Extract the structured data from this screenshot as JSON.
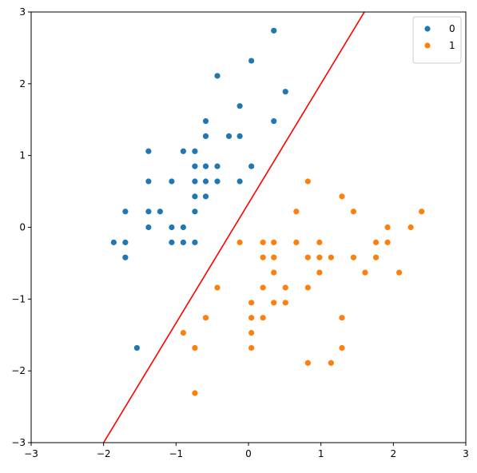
{
  "chart_data": {
    "type": "scatter",
    "title": "",
    "xlabel": "",
    "ylabel": "",
    "xlim": [
      -3,
      3
    ],
    "ylim": [
      -3,
      3
    ],
    "xticks": [
      -3,
      -2,
      -1,
      0,
      1,
      2,
      3
    ],
    "yticks": [
      -3,
      -2,
      -1,
      0,
      1,
      2,
      3
    ],
    "grid": false,
    "legend": "top-right",
    "series": [
      {
        "name": "0",
        "color": "#1f77b4",
        "points": [
          [
            0.35,
            2.74
          ],
          [
            0.04,
            2.32
          ],
          [
            -0.43,
            2.11
          ],
          [
            0.51,
            1.89
          ],
          [
            -0.12,
            1.69
          ],
          [
            -0.59,
            1.48
          ],
          [
            0.35,
            1.48
          ],
          [
            -0.59,
            1.27
          ],
          [
            -0.27,
            1.27
          ],
          [
            -0.12,
            1.27
          ],
          [
            -1.38,
            1.06
          ],
          [
            -0.9,
            1.06
          ],
          [
            -0.74,
            1.06
          ],
          [
            -0.74,
            0.85
          ],
          [
            -0.59,
            0.85
          ],
          [
            -0.43,
            0.85
          ],
          [
            0.04,
            0.85
          ],
          [
            -1.38,
            0.64
          ],
          [
            -1.06,
            0.64
          ],
          [
            -0.74,
            0.64
          ],
          [
            -0.59,
            0.64
          ],
          [
            -0.43,
            0.64
          ],
          [
            -0.12,
            0.64
          ],
          [
            -0.74,
            0.43
          ],
          [
            -0.59,
            0.43
          ],
          [
            -1.7,
            0.22
          ],
          [
            -1.38,
            0.22
          ],
          [
            -1.22,
            0.22
          ],
          [
            -0.74,
            0.22
          ],
          [
            -1.38,
            0.0
          ],
          [
            -1.06,
            0.0
          ],
          [
            -0.9,
            0.0
          ],
          [
            -1.86,
            -0.21
          ],
          [
            -1.7,
            -0.21
          ],
          [
            -1.06,
            -0.21
          ],
          [
            -0.9,
            -0.21
          ],
          [
            -0.74,
            -0.21
          ],
          [
            -1.7,
            -0.42
          ],
          [
            -1.54,
            -1.68
          ]
        ]
      },
      {
        "name": "1",
        "color": "#ff7f0e",
        "points": [
          [
            0.82,
            0.64
          ],
          [
            1.29,
            0.43
          ],
          [
            0.66,
            0.22
          ],
          [
            1.45,
            0.22
          ],
          [
            2.39,
            0.22
          ],
          [
            1.92,
            0.0
          ],
          [
            2.24,
            0.0
          ],
          [
            -0.12,
            -0.21
          ],
          [
            0.2,
            -0.21
          ],
          [
            0.35,
            -0.21
          ],
          [
            0.66,
            -0.21
          ],
          [
            0.98,
            -0.21
          ],
          [
            1.76,
            -0.21
          ],
          [
            1.92,
            -0.21
          ],
          [
            0.2,
            -0.42
          ],
          [
            0.35,
            -0.42
          ],
          [
            0.82,
            -0.42
          ],
          [
            0.98,
            -0.42
          ],
          [
            1.14,
            -0.42
          ],
          [
            1.45,
            -0.42
          ],
          [
            1.76,
            -0.42
          ],
          [
            0.35,
            -0.63
          ],
          [
            0.98,
            -0.63
          ],
          [
            1.61,
            -0.63
          ],
          [
            2.08,
            -0.63
          ],
          [
            -0.43,
            -0.84
          ],
          [
            0.2,
            -0.84
          ],
          [
            0.51,
            -0.84
          ],
          [
            0.82,
            -0.84
          ],
          [
            0.04,
            -1.05
          ],
          [
            0.35,
            -1.05
          ],
          [
            0.51,
            -1.05
          ],
          [
            -0.59,
            -1.26
          ],
          [
            0.04,
            -1.26
          ],
          [
            0.2,
            -1.26
          ],
          [
            1.29,
            -1.26
          ],
          [
            -0.9,
            -1.47
          ],
          [
            0.04,
            -1.47
          ],
          [
            -0.74,
            -1.68
          ],
          [
            0.04,
            -1.68
          ],
          [
            1.29,
            -1.68
          ],
          [
            0.82,
            -1.89
          ],
          [
            1.14,
            -1.89
          ],
          [
            -0.74,
            -2.31
          ]
        ]
      }
    ],
    "lines": [
      {
        "color": "#ff0000",
        "x": [
          -2.0,
          1.6
        ],
        "y": [
          -3.0,
          3.0
        ]
      }
    ]
  }
}
